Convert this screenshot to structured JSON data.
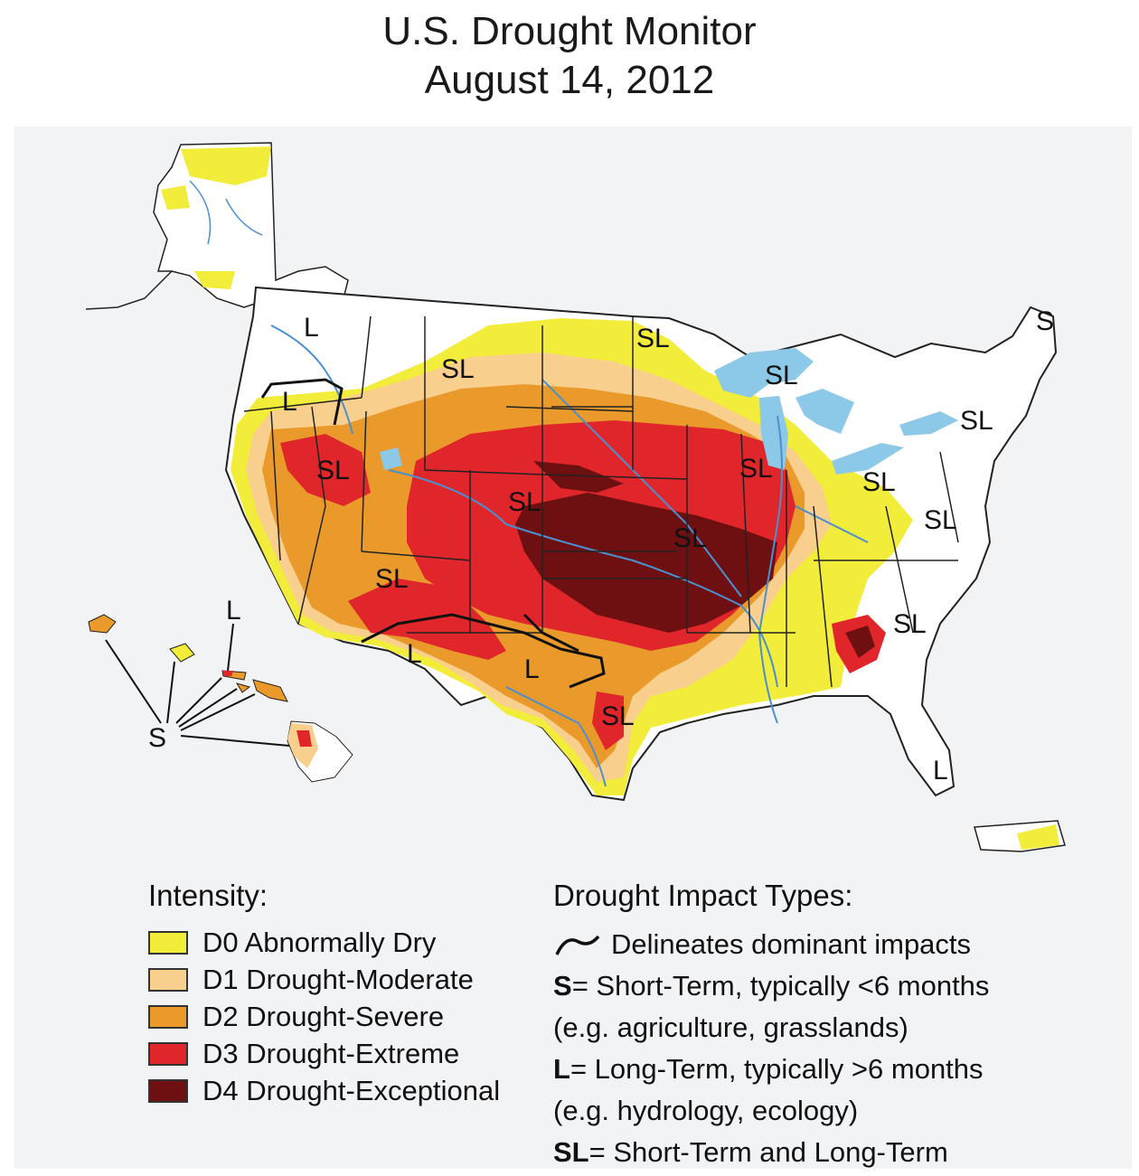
{
  "title": {
    "line1": "U.S. Drought Monitor",
    "line2": "August 14, 2012"
  },
  "map_labels": {
    "SL": "SL",
    "S": "S",
    "L": "L"
  },
  "intensity": {
    "heading": "Intensity:",
    "levels": [
      {
        "label": "D0 Abnormally Dry",
        "color": "#f2ec3a"
      },
      {
        "label": "D1 Drought-Moderate",
        "color": "#f9cf8e"
      },
      {
        "label": "D2 Drought-Severe",
        "color": "#e99a2a"
      },
      {
        "label": "D3 Drought-Extreme",
        "color": "#e0262a"
      },
      {
        "label": "D4 Drought-Exceptional",
        "color": "#6e1012"
      }
    ]
  },
  "impact_types": {
    "heading": "Drought Impact Types:",
    "delineates": "Delineates dominant impacts",
    "s_key": "S",
    "s_text": "= Short-Term, typically <6 months",
    "s_example": "(e.g. agriculture, grasslands)",
    "l_key": "L",
    "l_text": "= Long-Term, typically >6 months",
    "l_example": "(e.g. hydrology, ecology)",
    "sl_key": "SL",
    "sl_text": "= Short-Term and Long-Term"
  },
  "colors": {
    "background": "#f2f3f5",
    "water": "#8cc8e8",
    "rivers": "#4a90d0"
  }
}
